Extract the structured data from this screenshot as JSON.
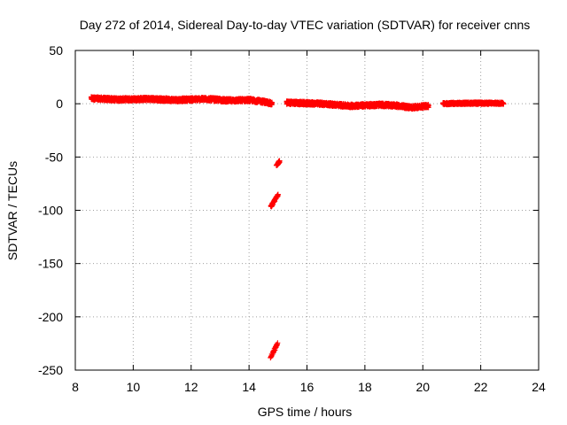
{
  "chart_data": {
    "type": "scatter",
    "title": "Day 272 of 2014, Sidereal Day-to-day VTEC variation (SDTVAR) for receiver cnns",
    "xlabel": "GPS time / hours",
    "ylabel": "SDTVAR / TECUs",
    "xlim": [
      8,
      24
    ],
    "ylim": [
      -250,
      50
    ],
    "xticks": [
      8,
      10,
      12,
      14,
      16,
      18,
      20,
      22,
      24
    ],
    "yticks": [
      50,
      0,
      -50,
      -100,
      -150,
      -200,
      -250
    ],
    "grid": true,
    "marker_color": "#ff0000",
    "series": [
      {
        "name": "SDTVAR",
        "segments": [
          {
            "x_start": 8.55,
            "x_end": 14.8,
            "y_knots": [
              [
                8.55,
                5
              ],
              [
                9.5,
                4
              ],
              [
                10.5,
                4.5
              ],
              [
                11.5,
                3.5
              ],
              [
                12.5,
                4.5
              ],
              [
                13.3,
                3
              ],
              [
                14.0,
                3.5
              ],
              [
                14.5,
                2
              ],
              [
                14.8,
                0
              ]
            ],
            "jitter": 1.6
          },
          {
            "x_start": 15.3,
            "x_end": 20.2,
            "y_knots": [
              [
                15.3,
                1
              ],
              [
                16.5,
                0
              ],
              [
                17.5,
                -2
              ],
              [
                18.5,
                -1
              ],
              [
                19.0,
                -1.5
              ],
              [
                19.6,
                -3.5
              ],
              [
                20.2,
                -2
              ]
            ],
            "jitter": 1.6
          },
          {
            "x_start": 20.7,
            "x_end": 22.8,
            "y_knots": [
              [
                20.7,
                0
              ],
              [
                21.5,
                0.5
              ],
              [
                22.8,
                0.5
              ]
            ],
            "jitter": 1.0
          }
        ],
        "outlier_groups": [
          {
            "x_range": [
              14.95,
              15.05
            ],
            "y_range": [
              -58,
              -54
            ]
          },
          {
            "x_range": [
              14.75,
              15.0
            ],
            "y_range": [
              -97,
              -85
            ]
          },
          {
            "x_range": [
              14.75,
              14.98
            ],
            "y_range": [
              -238,
              -225
            ]
          }
        ]
      }
    ]
  }
}
